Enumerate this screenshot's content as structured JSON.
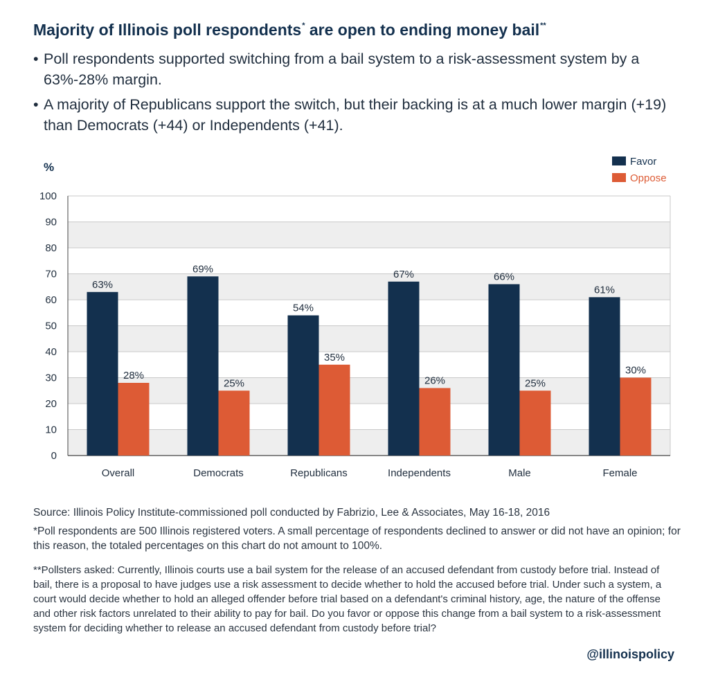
{
  "title": {
    "text": "Majority of Illinois poll respondents",
    "sup1": "*",
    "text2": " are open to ending money bail",
    "sup2": "**"
  },
  "bullets": [
    {
      "dot": "•",
      "text": "Poll respondents supported switching from a bail system to a risk-assessment system by a 63%-28% margin."
    },
    {
      "dot": "•",
      "text": "A majority of Republicans support the switch, but their backing is at a much lower margin (+19) than Democrats (+44) or Independents (+41)."
    }
  ],
  "chart_data": {
    "type": "bar",
    "unit_label": "%",
    "categories": [
      "Overall",
      "Democrats",
      "Republicans",
      "Independents",
      "Male",
      "Female"
    ],
    "series": [
      {
        "name": "Favor",
        "color": "#13304e",
        "values": [
          63,
          69,
          54,
          67,
          66,
          61
        ],
        "labels": [
          "63%",
          "69%",
          "54%",
          "67%",
          "66%",
          "61%"
        ]
      },
      {
        "name": "Oppose",
        "color": "#dd5b35",
        "values": [
          28,
          25,
          35,
          26,
          25,
          30
        ],
        "labels": [
          "28%",
          "25%",
          "35%",
          "26%",
          "25%",
          "30%"
        ]
      }
    ],
    "ylim": [
      0,
      100
    ],
    "yticks": [
      0,
      10,
      20,
      30,
      40,
      50,
      60,
      70,
      80,
      90,
      100
    ],
    "grid": "banded",
    "band_color": "#eeeeee",
    "legend": "top-right",
    "xlabel": "",
    "ylabel": ""
  },
  "footnotes": {
    "source": "Source: Illinois Policy Institute-commissioned poll conducted by Fabrizio, Lee & Associates, May 16-18, 2016",
    "respondents": "*Poll respondents are 500 Illinois registered voters. A small percentage of respondents declined to answer or did not have an opinion; for this reason, the totaled percentages on this chart do not amount to 100%.",
    "pollsters": "**Pollsters asked: Currently, Illinois courts use a bail system for the release of an accused defendant from custody before trial. Instead of bail, there is a proposal to have judges use a risk assessment to decide whether to hold the accused before trial. Under such a system, a court would decide whether to hold an alleged offender before trial based on a defendant's criminal history, age, the nature of the offense and other risk factors unrelated to their ability to pay for bail. Do you favor or oppose this change from a bail system to a risk-assessment system for deciding whether to release an accused defendant from custody before trial?"
  },
  "handle": "@illinoispolicy"
}
